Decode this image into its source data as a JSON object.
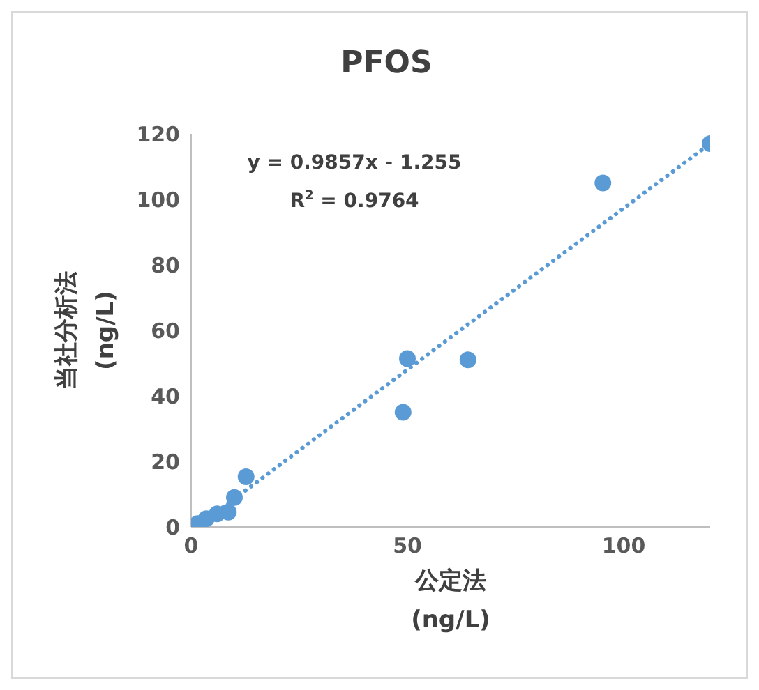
{
  "chart_data": {
    "type": "scatter",
    "title": "PFOS",
    "xlabel": "公定法\n(ng/L)",
    "ylabel": "当社分析法\n(ng/L)",
    "annotations": [
      "y = 0.9857x - 1.255",
      "R$^{2}$ = 0.9764"
    ],
    "xlim": [
      0,
      120
    ],
    "xticks": [
      0,
      50,
      100
    ],
    "ylim": [
      0,
      120
    ],
    "yticks": [
      0,
      20,
      40,
      60,
      80,
      100,
      120
    ],
    "marker": "circle",
    "series": [
      {
        "color": "#5b9bd5",
        "x": [
          1.5,
          3.5,
          6,
          8.6,
          10,
          12.7,
          49,
          50,
          64,
          95.2,
          120
        ],
        "values": [
          1,
          2.5,
          4,
          4.5,
          9,
          15.3,
          35,
          51.4,
          51,
          105,
          117
        ]
      },
      {
        "type": "line",
        "color": "#5b9bd5",
        "line_style": "dotted",
        "marker": "none",
        "x": [
          2,
          120
        ],
        "values": [
          0.7,
          117
        ]
      }
    ]
  }
}
